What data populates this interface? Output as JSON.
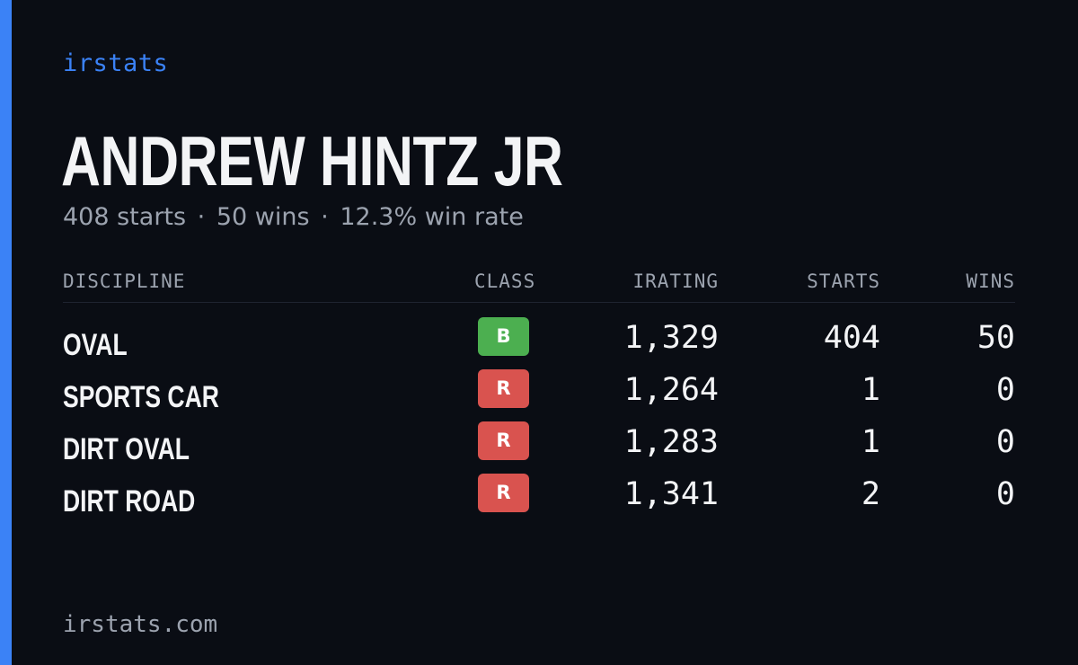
{
  "brand": "irstats",
  "driver": {
    "name": "ANDREW HINTZ JR",
    "starts_text": "408 starts",
    "wins_text": "50 wins",
    "win_rate_text": "12.3% win rate",
    "separator": "·"
  },
  "table": {
    "headers": {
      "discipline": "DISCIPLINE",
      "class": "CLASS",
      "irating": "IRATING",
      "starts": "STARTS",
      "wins": "WINS"
    },
    "rows": [
      {
        "discipline": "OVAL",
        "class": "B",
        "class_color": "#4caf50",
        "irating": "1,329",
        "starts": "404",
        "wins": "50"
      },
      {
        "discipline": "SPORTS CAR",
        "class": "R",
        "class_color": "#d9534f",
        "irating": "1,264",
        "starts": "1",
        "wins": "0"
      },
      {
        "discipline": "DIRT OVAL",
        "class": "R",
        "class_color": "#d9534f",
        "irating": "1,283",
        "starts": "1",
        "wins": "0"
      },
      {
        "discipline": "DIRT ROAD",
        "class": "R",
        "class_color": "#d9534f",
        "irating": "1,341",
        "starts": "2",
        "wins": "0"
      }
    ]
  },
  "footer": "irstats.com",
  "colors": {
    "accent": "#3b82f6",
    "background": "#0a0d14",
    "text": "#f3f4f6",
    "muted": "#9ca3af"
  }
}
